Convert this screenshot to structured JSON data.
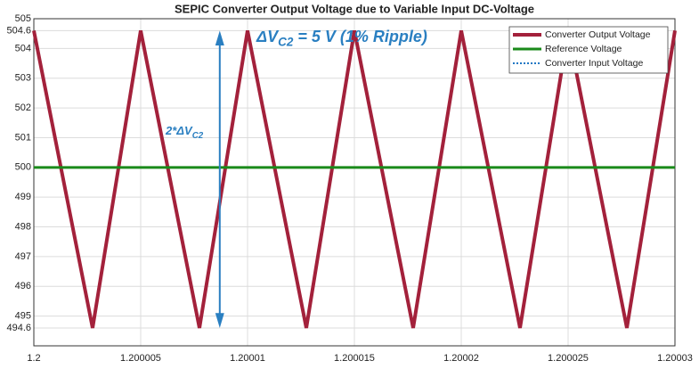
{
  "chart_data": {
    "type": "line",
    "title": "SEPIC Converter Output Voltage due to Variable Input DC-Voltage",
    "xlim": [
      1.2,
      1.20003
    ],
    "xticks": [
      1.2,
      1.200005,
      1.20001,
      1.200015,
      1.20002,
      1.200025,
      1.20003
    ],
    "ylim": [
      494,
      505
    ],
    "yticks": [
      494.6,
      495,
      496,
      497,
      498,
      499,
      500,
      501,
      502,
      503,
      504,
      504.6,
      505
    ],
    "grid": true,
    "legend": "upper right",
    "series": [
      {
        "name": "Converter Output Voltage",
        "color": "#a3213b",
        "style": "solid",
        "x": [
          1.2,
          1.20000275,
          1.200005,
          1.20000775,
          1.20001,
          1.20001275,
          1.200015,
          1.20001775,
          1.20002,
          1.20002275,
          1.200025,
          1.20002775,
          1.20003
        ],
        "values": [
          504.6,
          494.6,
          504.6,
          494.6,
          504.6,
          494.6,
          504.6,
          494.6,
          504.6,
          494.6,
          504.6,
          494.6,
          504.6
        ]
      },
      {
        "name": "Reference Voltage",
        "color": "#1a8a1a",
        "style": "solid",
        "x": [
          1.2,
          1.20003
        ],
        "values": [
          500,
          500
        ]
      },
      {
        "name": "Converter Input Voltage",
        "color": "#1f77c4",
        "style": "dotted",
        "x": [],
        "values": []
      }
    ],
    "annotations": [
      {
        "text": "ΔV",
        "sub": "C2",
        "rest": " = 5 V (1% Ripple)"
      },
      {
        "text": "2*ΔV",
        "sub": "C2"
      }
    ]
  }
}
